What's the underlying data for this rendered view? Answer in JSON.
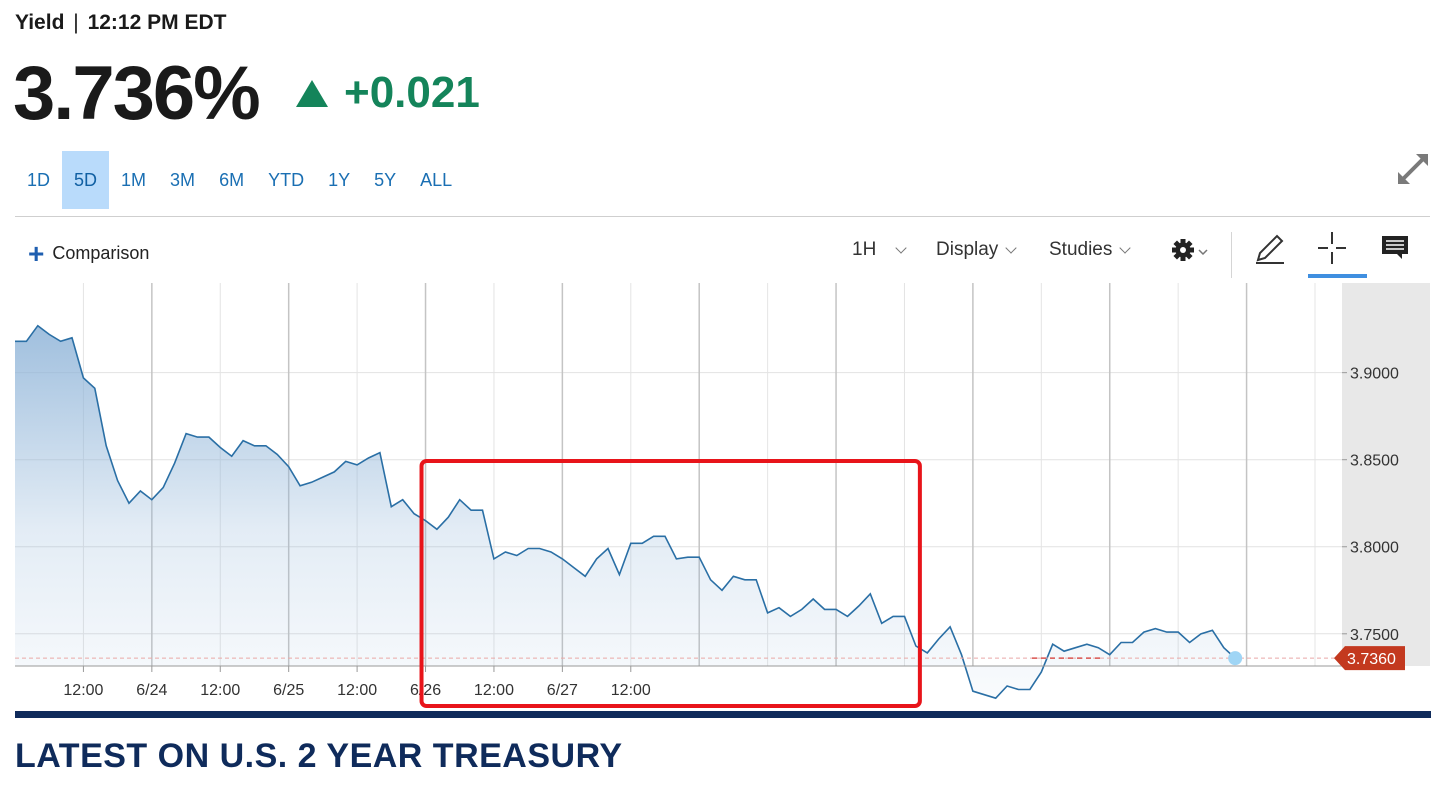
{
  "header": {
    "label": "Yield",
    "separator": "|",
    "time": "12:12 PM EDT"
  },
  "quote": {
    "value": "3.736%",
    "change": "+0.021",
    "direction": "up",
    "up_color": "#14845a"
  },
  "ranges": [
    {
      "label": "1D",
      "active": false
    },
    {
      "label": "5D",
      "active": true
    },
    {
      "label": "1M",
      "active": false
    },
    {
      "label": "3M",
      "active": false
    },
    {
      "label": "6M",
      "active": false
    },
    {
      "label": "YTD",
      "active": false
    },
    {
      "label": "1Y",
      "active": false
    },
    {
      "label": "5Y",
      "active": false
    },
    {
      "label": "ALL",
      "active": false
    }
  ],
  "toolbar": {
    "comparison_label": "Comparison",
    "interval_label": "1H",
    "display_label": "Display",
    "studies_label": "Studies",
    "icons": [
      "gear-icon",
      "pencil-icon",
      "crosshair-icon",
      "comment-icon",
      "expand-icon"
    ]
  },
  "chart_data": {
    "type": "area",
    "x_tick_labels": [
      "12:00",
      "6/24",
      "12:00",
      "6/25",
      "12:00",
      "6/26",
      "12:00",
      "6/27",
      "12:00"
    ],
    "y_ticks": [
      "3.9000",
      "3.8500",
      "3.8000",
      "3.7500"
    ],
    "ylim": [
      3.7315,
      3.9515
    ],
    "current_value_label": "3.7360",
    "current_value": 3.736,
    "line_color": "#2a6fa5",
    "fill_color": "#8fb4d8",
    "marker_color": "#9fd5f5",
    "price_tag_color": "#c3391f",
    "reference_line_color": "#d9534f",
    "highlight_box_color": "#e8141a",
    "highlight_range_hours": [
      36,
      79
    ],
    "grid": true,
    "total_hours": 114,
    "values": [
      3.918,
      3.918,
      3.927,
      3.922,
      3.918,
      3.92,
      3.897,
      3.891,
      3.858,
      3.838,
      3.825,
      3.832,
      3.827,
      3.834,
      3.848,
      3.865,
      3.863,
      3.863,
      3.857,
      3.852,
      3.861,
      3.858,
      3.858,
      3.853,
      3.846,
      3.835,
      3.837,
      3.84,
      3.843,
      3.849,
      3.847,
      3.851,
      3.854,
      3.823,
      3.827,
      3.819,
      3.815,
      3.81,
      3.817,
      3.827,
      3.821,
      3.821,
      3.793,
      3.797,
      3.795,
      3.799,
      3.799,
      3.797,
      3.793,
      3.788,
      3.783,
      3.793,
      3.799,
      3.784,
      3.802,
      3.802,
      3.806,
      3.806,
      3.793,
      3.794,
      3.794,
      3.781,
      3.775,
      3.783,
      3.781,
      3.781,
      3.762,
      3.765,
      3.76,
      3.764,
      3.77,
      3.764,
      3.764,
      3.76,
      3.766,
      3.773,
      3.756,
      3.76,
      3.76,
      3.743,
      3.739,
      3.747,
      3.754,
      3.738,
      3.717,
      3.715,
      3.713,
      3.72,
      3.718,
      3.718,
      3.728,
      3.744,
      3.74,
      3.742,
      3.744,
      3.742,
      3.738,
      3.745,
      3.745,
      3.751,
      3.753,
      3.751,
      3.751,
      3.745,
      3.75,
      3.752,
      3.742,
      3.736
    ]
  },
  "footer": {
    "title": "LATEST ON U.S. 2 YEAR TREASURY"
  }
}
